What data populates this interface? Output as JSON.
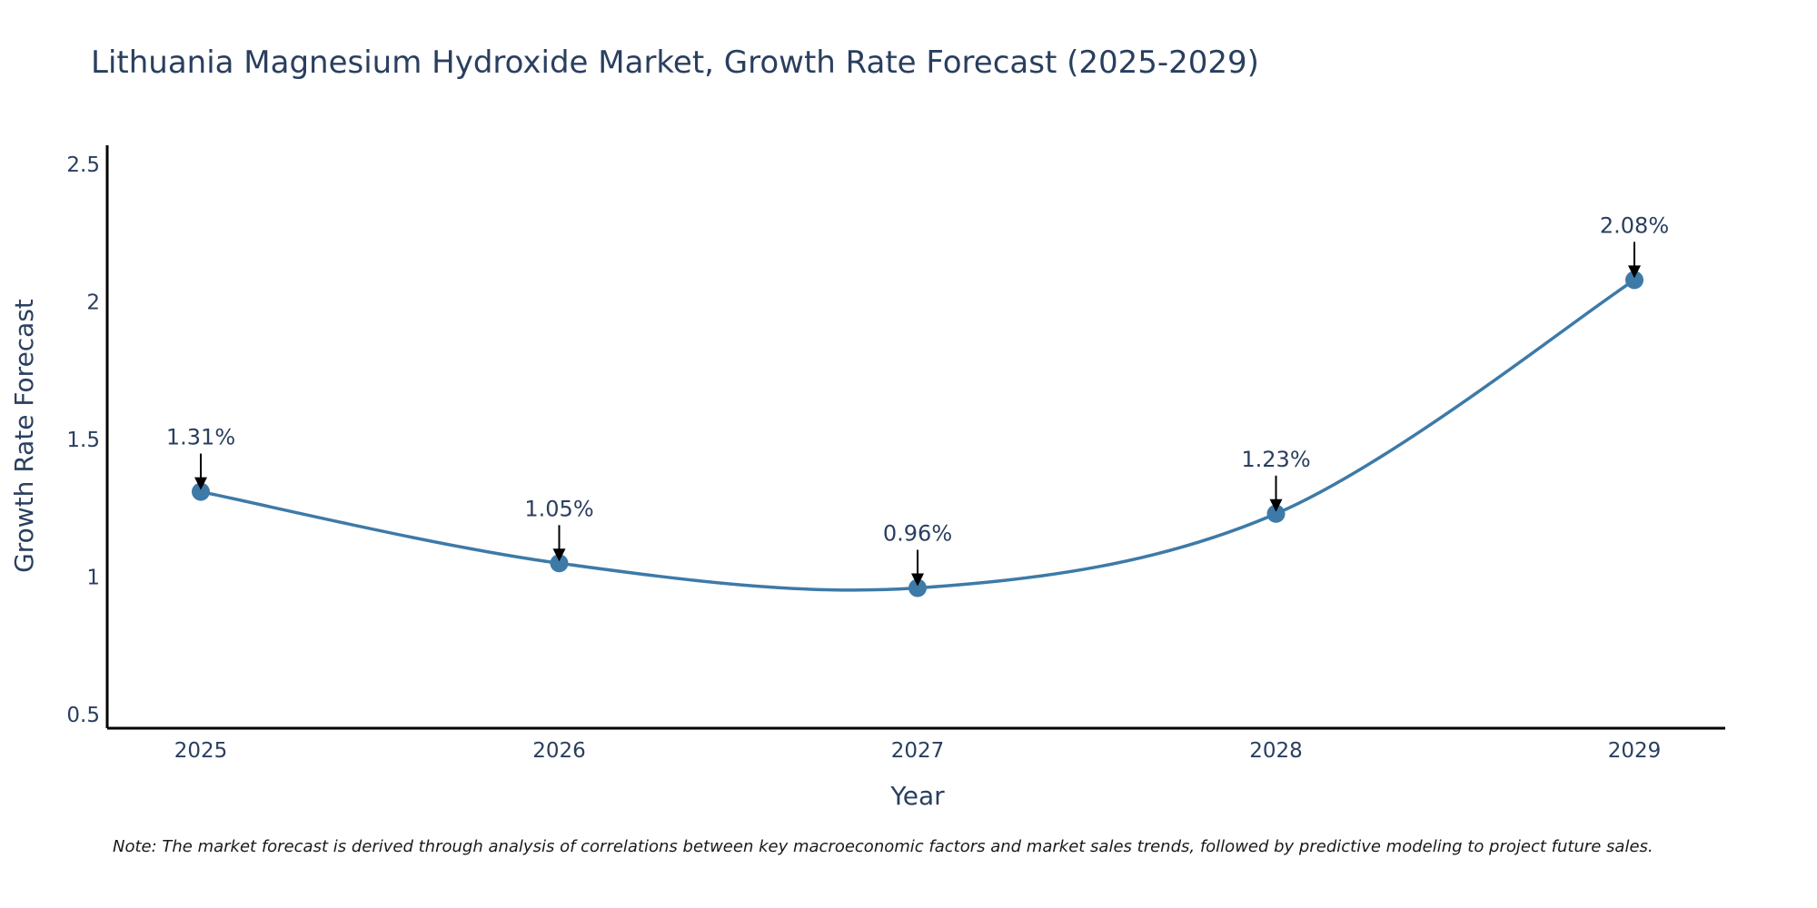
{
  "chart_data": {
    "type": "line",
    "title": "Lithuania Magnesium Hydroxide Market, Growth Rate Forecast (2025-2029)",
    "xlabel": "Year",
    "ylabel": "Growth Rate Forecast",
    "categories": [
      "2025",
      "2026",
      "2027",
      "2028",
      "2029"
    ],
    "values": [
      1.31,
      1.05,
      0.96,
      1.23,
      2.08
    ],
    "data_labels": [
      "1.31%",
      "1.05%",
      "0.96%",
      "1.23%",
      "2.08%"
    ],
    "yticks": [
      0.5,
      1,
      1.5,
      2,
      2.5
    ],
    "ytick_labels": [
      "0.5",
      "1",
      "1.5",
      "2",
      "2.5"
    ],
    "ylim": [
      0.45,
      2.57
    ],
    "grid": false,
    "line_shape": "spline",
    "series_color": "#3d7aa8",
    "note": "Note: The market forecast is derived through analysis of correlations between key macroeconomic factors and market sales trends, followed by predictive modeling to project future sales."
  }
}
